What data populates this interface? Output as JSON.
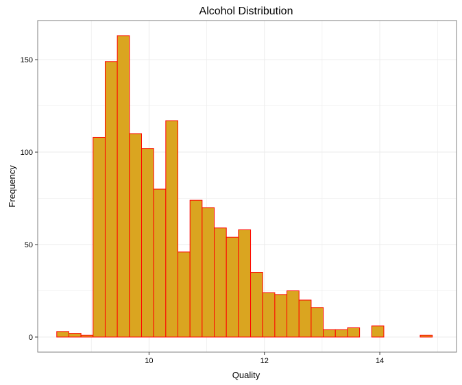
{
  "chart_data": {
    "type": "bar",
    "title": "Alcohol Distribution",
    "xlabel": "Quality",
    "ylabel": "Frequency",
    "xlim": [
      8.07,
      15.33
    ],
    "ylim": [
      -8.15,
      171.15
    ],
    "x_ticks": [
      10,
      12,
      14
    ],
    "y_ticks": [
      0,
      50,
      100,
      150
    ],
    "bin_start": 8.4,
    "bin_width": 0.21,
    "values": [
      3,
      2,
      1,
      108,
      149,
      163,
      110,
      102,
      80,
      117,
      46,
      74,
      70,
      59,
      54,
      58,
      35,
      24,
      23,
      25,
      20,
      16,
      4,
      4,
      5,
      0,
      6,
      0,
      0,
      0,
      1
    ],
    "grid": true,
    "legend": "none",
    "colors": {
      "bar_fill": "#DAA520",
      "bar_edge": "#FF0000",
      "grid": "#EBEBEB",
      "panel_border": "#7F7F7F"
    }
  }
}
